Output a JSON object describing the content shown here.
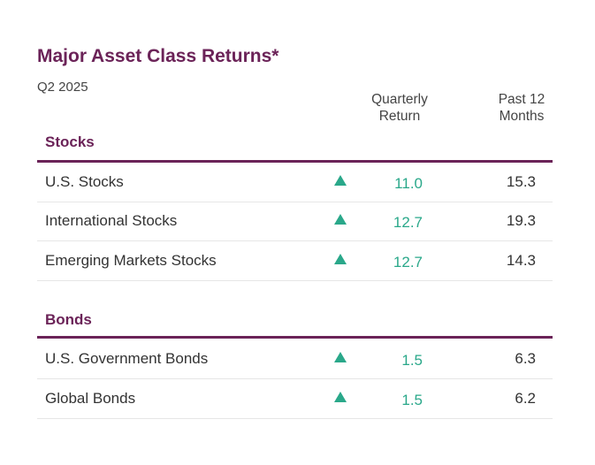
{
  "title": "Major Asset Class Returns*",
  "subtitle": "Q2 2025",
  "columns": {
    "quarterly": [
      "Quarterly",
      "Return"
    ],
    "past12": [
      "Past 12",
      "Months"
    ]
  },
  "colors": {
    "accent": "#6b2358",
    "up": "#2aa88a"
  },
  "chart_data": {
    "type": "table",
    "title": "Major Asset Class Returns*",
    "subtitle": "Q2 2025",
    "columns": [
      "Quarterly Return",
      "Past 12 Months"
    ],
    "sections": [
      {
        "name": "Stocks",
        "rows": [
          {
            "label": "U.S. Stocks",
            "direction": "up",
            "quarterly": "11.0",
            "past12": "15.3"
          },
          {
            "label": "International Stocks",
            "direction": "up",
            "quarterly": "12.7",
            "past12": "19.3"
          },
          {
            "label": "Emerging Markets Stocks",
            "direction": "up",
            "quarterly": "12.7",
            "past12": "14.3"
          }
        ]
      },
      {
        "name": "Bonds",
        "rows": [
          {
            "label": "U.S. Government Bonds",
            "direction": "up",
            "quarterly": "1.5",
            "past12": "6.3"
          },
          {
            "label": "Global Bonds",
            "direction": "up",
            "quarterly": "1.5",
            "past12": "6.2"
          }
        ]
      }
    ]
  }
}
